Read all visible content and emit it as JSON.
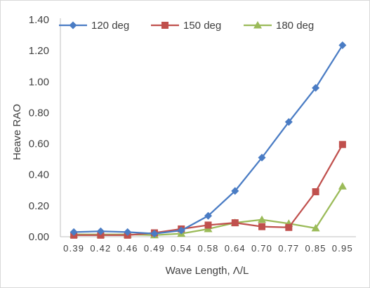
{
  "chart_data": {
    "type": "line",
    "title": "",
    "xlabel": "Wave Length, Λ/L",
    "ylabel": "Heave RAO",
    "categories": [
      "0.39",
      "0.42",
      "0.46",
      "0.49",
      "0.54",
      "0.58",
      "0.64",
      "0.70",
      "0.77",
      "0.85",
      "0.95"
    ],
    "ylim": [
      0,
      1.4
    ],
    "yticks": [
      "0.00",
      "0.20",
      "0.40",
      "0.60",
      "0.80",
      "1.00",
      "1.20",
      "1.40"
    ],
    "grid": false,
    "legend_position": "top",
    "series": [
      {
        "name": "120 deg",
        "color": "#4a7cc4",
        "marker": "diamond",
        "values": [
          0.03,
          0.035,
          0.03,
          0.02,
          0.04,
          0.135,
          0.295,
          0.51,
          0.74,
          0.96,
          1.235
        ]
      },
      {
        "name": "150 deg",
        "color": "#c0504d",
        "marker": "square",
        "values": [
          0.01,
          0.01,
          0.01,
          0.025,
          0.05,
          0.075,
          0.09,
          0.065,
          0.06,
          0.29,
          0.595
        ]
      },
      {
        "name": "180 deg",
        "color": "#9bbb59",
        "marker": "triangle",
        "values": [
          0.015,
          0.015,
          0.015,
          0.01,
          0.02,
          0.05,
          0.09,
          0.11,
          0.085,
          0.055,
          0.325
        ]
      }
    ]
  }
}
